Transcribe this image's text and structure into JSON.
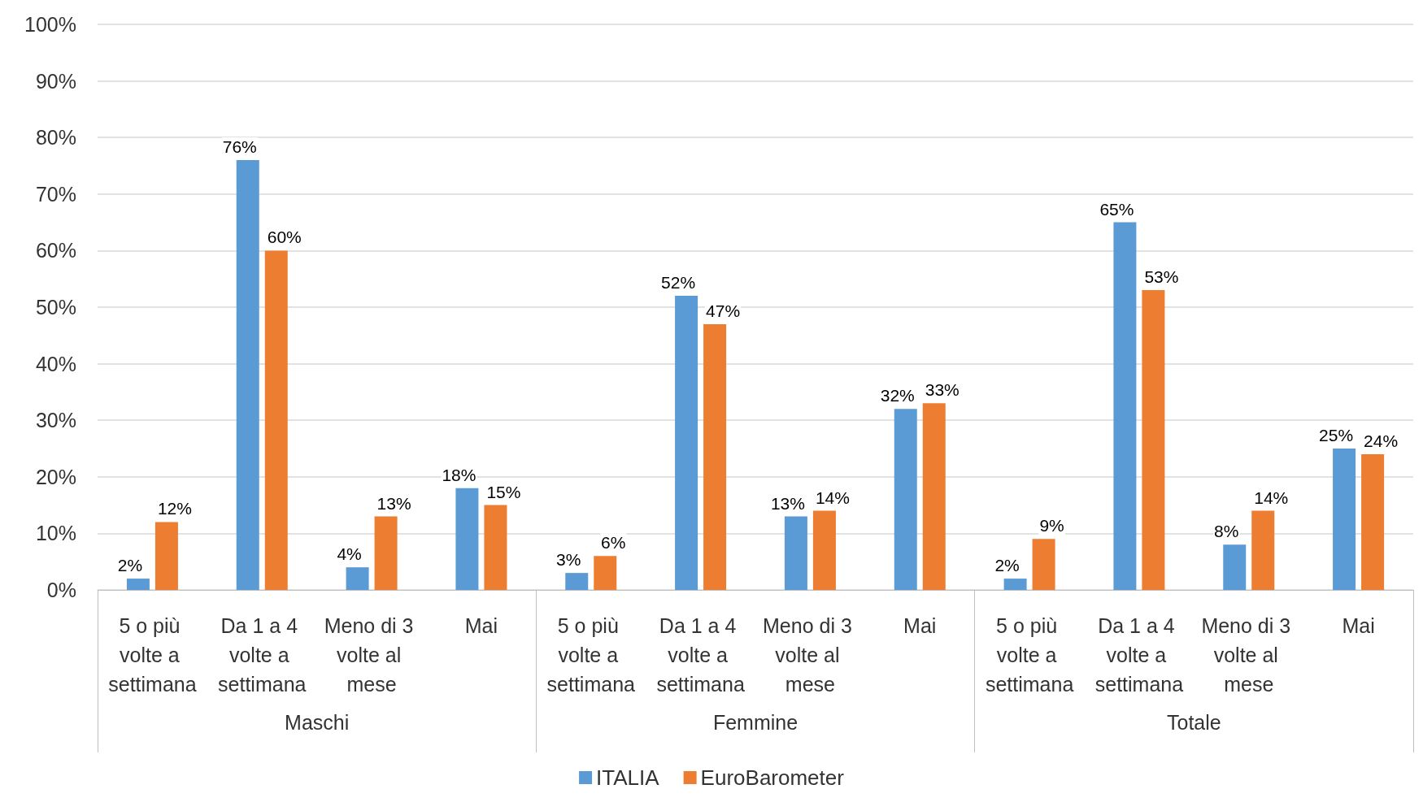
{
  "chart_data": {
    "type": "bar",
    "categories": [
      "5 o più volte a settimana",
      "Da 1 a 4 volte a settimana",
      "Meno di 3 volte al mese",
      "Mai",
      "5 o più volte a settimana",
      "Da 1 a 4 volte a settimana",
      "Meno di 3 volte al mese",
      "Mai",
      "5 o più volte a settimana",
      "Da 1 a 4 volte a settimana",
      "Meno di 3 volte al mese",
      "Mai"
    ],
    "series": [
      {
        "name": "ITALIA",
        "color": "#5b9bd5",
        "values": [
          2,
          76,
          4,
          18,
          3,
          52,
          13,
          32,
          2,
          65,
          8,
          25
        ],
        "value_labels": [
          "2%",
          "76%",
          "4%",
          "18%",
          "3%",
          "52%",
          "13%",
          "32%",
          "2%",
          "65%",
          "8%",
          "25%"
        ]
      },
      {
        "name": "EuroBarometer",
        "color": "#ed7d31",
        "values": [
          12,
          60,
          13,
          15,
          6,
          47,
          14,
          33,
          9,
          53,
          14,
          24
        ],
        "value_labels": [
          "12%",
          "60%",
          "13%",
          "15%",
          "6%",
          "47%",
          "14%",
          "33%",
          "9%",
          "53%",
          "14%",
          "24%"
        ]
      }
    ],
    "annotations": [
      "Maschi",
      "Femmine",
      "Totale"
    ],
    "ylim": [
      0,
      100
    ],
    "yticks": [
      {
        "value": 0,
        "label": "0%"
      },
      {
        "value": 10,
        "label": "10%"
      },
      {
        "value": 20,
        "label": "20%"
      },
      {
        "value": 30,
        "label": "30%"
      },
      {
        "value": 40,
        "label": "40%"
      },
      {
        "value": 50,
        "label": "50%"
      },
      {
        "value": 60,
        "label": "60%"
      },
      {
        "value": 70,
        "label": "70%"
      },
      {
        "value": 80,
        "label": "80%"
      },
      {
        "value": 90,
        "label": "90%"
      },
      {
        "value": 100,
        "label": "100%"
      }
    ],
    "grid": "y",
    "legend": "bottom"
  }
}
